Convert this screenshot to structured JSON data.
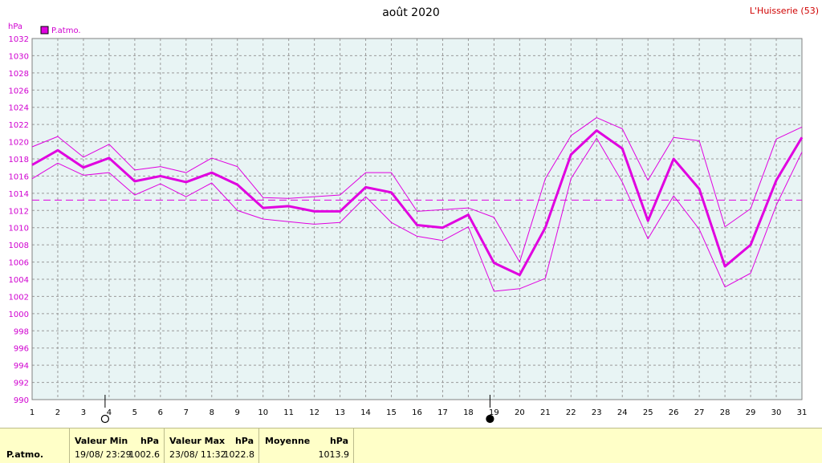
{
  "title": "août 2020",
  "station": "L'Huisserie (53)",
  "unit": "hPa",
  "legend_label": "P.atmo.",
  "colors": {
    "series": "#e000e0",
    "grid": "#9a9a9a",
    "plot_bg": "#e8f4f4",
    "footer_bg": "#ffffc8"
  },
  "chart_data": {
    "type": "line",
    "title": "août 2020",
    "ylabel": "hPa",
    "xlabel": "",
    "ylim": [
      990,
      1032
    ],
    "yticks": [
      990,
      992,
      994,
      996,
      998,
      1000,
      1002,
      1004,
      1006,
      1008,
      1010,
      1012,
      1014,
      1016,
      1018,
      1020,
      1022,
      1024,
      1026,
      1028,
      1030,
      1032
    ],
    "x": [
      1,
      2,
      3,
      4,
      5,
      6,
      7,
      8,
      9,
      10,
      11,
      12,
      13,
      14,
      15,
      16,
      17,
      18,
      19,
      20,
      21,
      22,
      23,
      24,
      25,
      26,
      27,
      28,
      29,
      30,
      31
    ],
    "series": [
      {
        "name": "P.atmo.",
        "role": "mean",
        "values": [
          1017.3,
          1019.0,
          1017.0,
          1018.1,
          1015.4,
          1016.0,
          1015.3,
          1016.4,
          1015.0,
          1012.3,
          1012.5,
          1011.9,
          1011.9,
          1014.7,
          1014.1,
          1010.3,
          1010.0,
          1011.5,
          1005.9,
          1004.5,
          1010.0,
          1018.5,
          1021.3,
          1019.2,
          1010.8,
          1018.0,
          1014.5,
          1005.5,
          1008.0,
          1015.5,
          1020.5
        ]
      },
      {
        "role": "max",
        "values": [
          1019.4,
          1020.6,
          1018.2,
          1019.7,
          1016.7,
          1017.1,
          1016.4,
          1018.1,
          1017.1,
          1013.5,
          1013.4,
          1013.6,
          1013.8,
          1016.4,
          1016.4,
          1011.9,
          1012.1,
          1012.3,
          1011.2,
          1006.0,
          1015.7,
          1020.7,
          1022.8,
          1021.5,
          1015.5,
          1020.5,
          1020.1,
          1010.1,
          1012.2,
          1020.3,
          1021.7
        ]
      },
      {
        "role": "min",
        "values": [
          1015.7,
          1017.5,
          1016.1,
          1016.4,
          1013.8,
          1015.1,
          1013.6,
          1015.2,
          1012.0,
          1011.0,
          1010.7,
          1010.4,
          1010.6,
          1013.6,
          1010.6,
          1009.0,
          1008.5,
          1010.1,
          1002.6,
          1002.9,
          1004.1,
          1015.7,
          1020.4,
          1015.3,
          1008.7,
          1013.7,
          1009.8,
          1003.1,
          1004.7,
          1012.6,
          1018.8
        ]
      }
    ],
    "reference_line": 1013.2,
    "moon_phases": [
      {
        "day": 4,
        "phase": "full"
      },
      {
        "day": 19,
        "phase": "new"
      }
    ],
    "grid": true
  },
  "stats": {
    "row_label": "P.atmo.",
    "min": {
      "header": "Valeur Min",
      "unit": "hPa",
      "when": "19/08/  23:29",
      "value": "1002.6"
    },
    "max": {
      "header": "Valeur Max",
      "unit": "hPa",
      "when": "23/08/  11:32",
      "value": "1022.8"
    },
    "mean": {
      "header": "Moyenne",
      "unit": "hPa",
      "value": "1013.9"
    }
  }
}
